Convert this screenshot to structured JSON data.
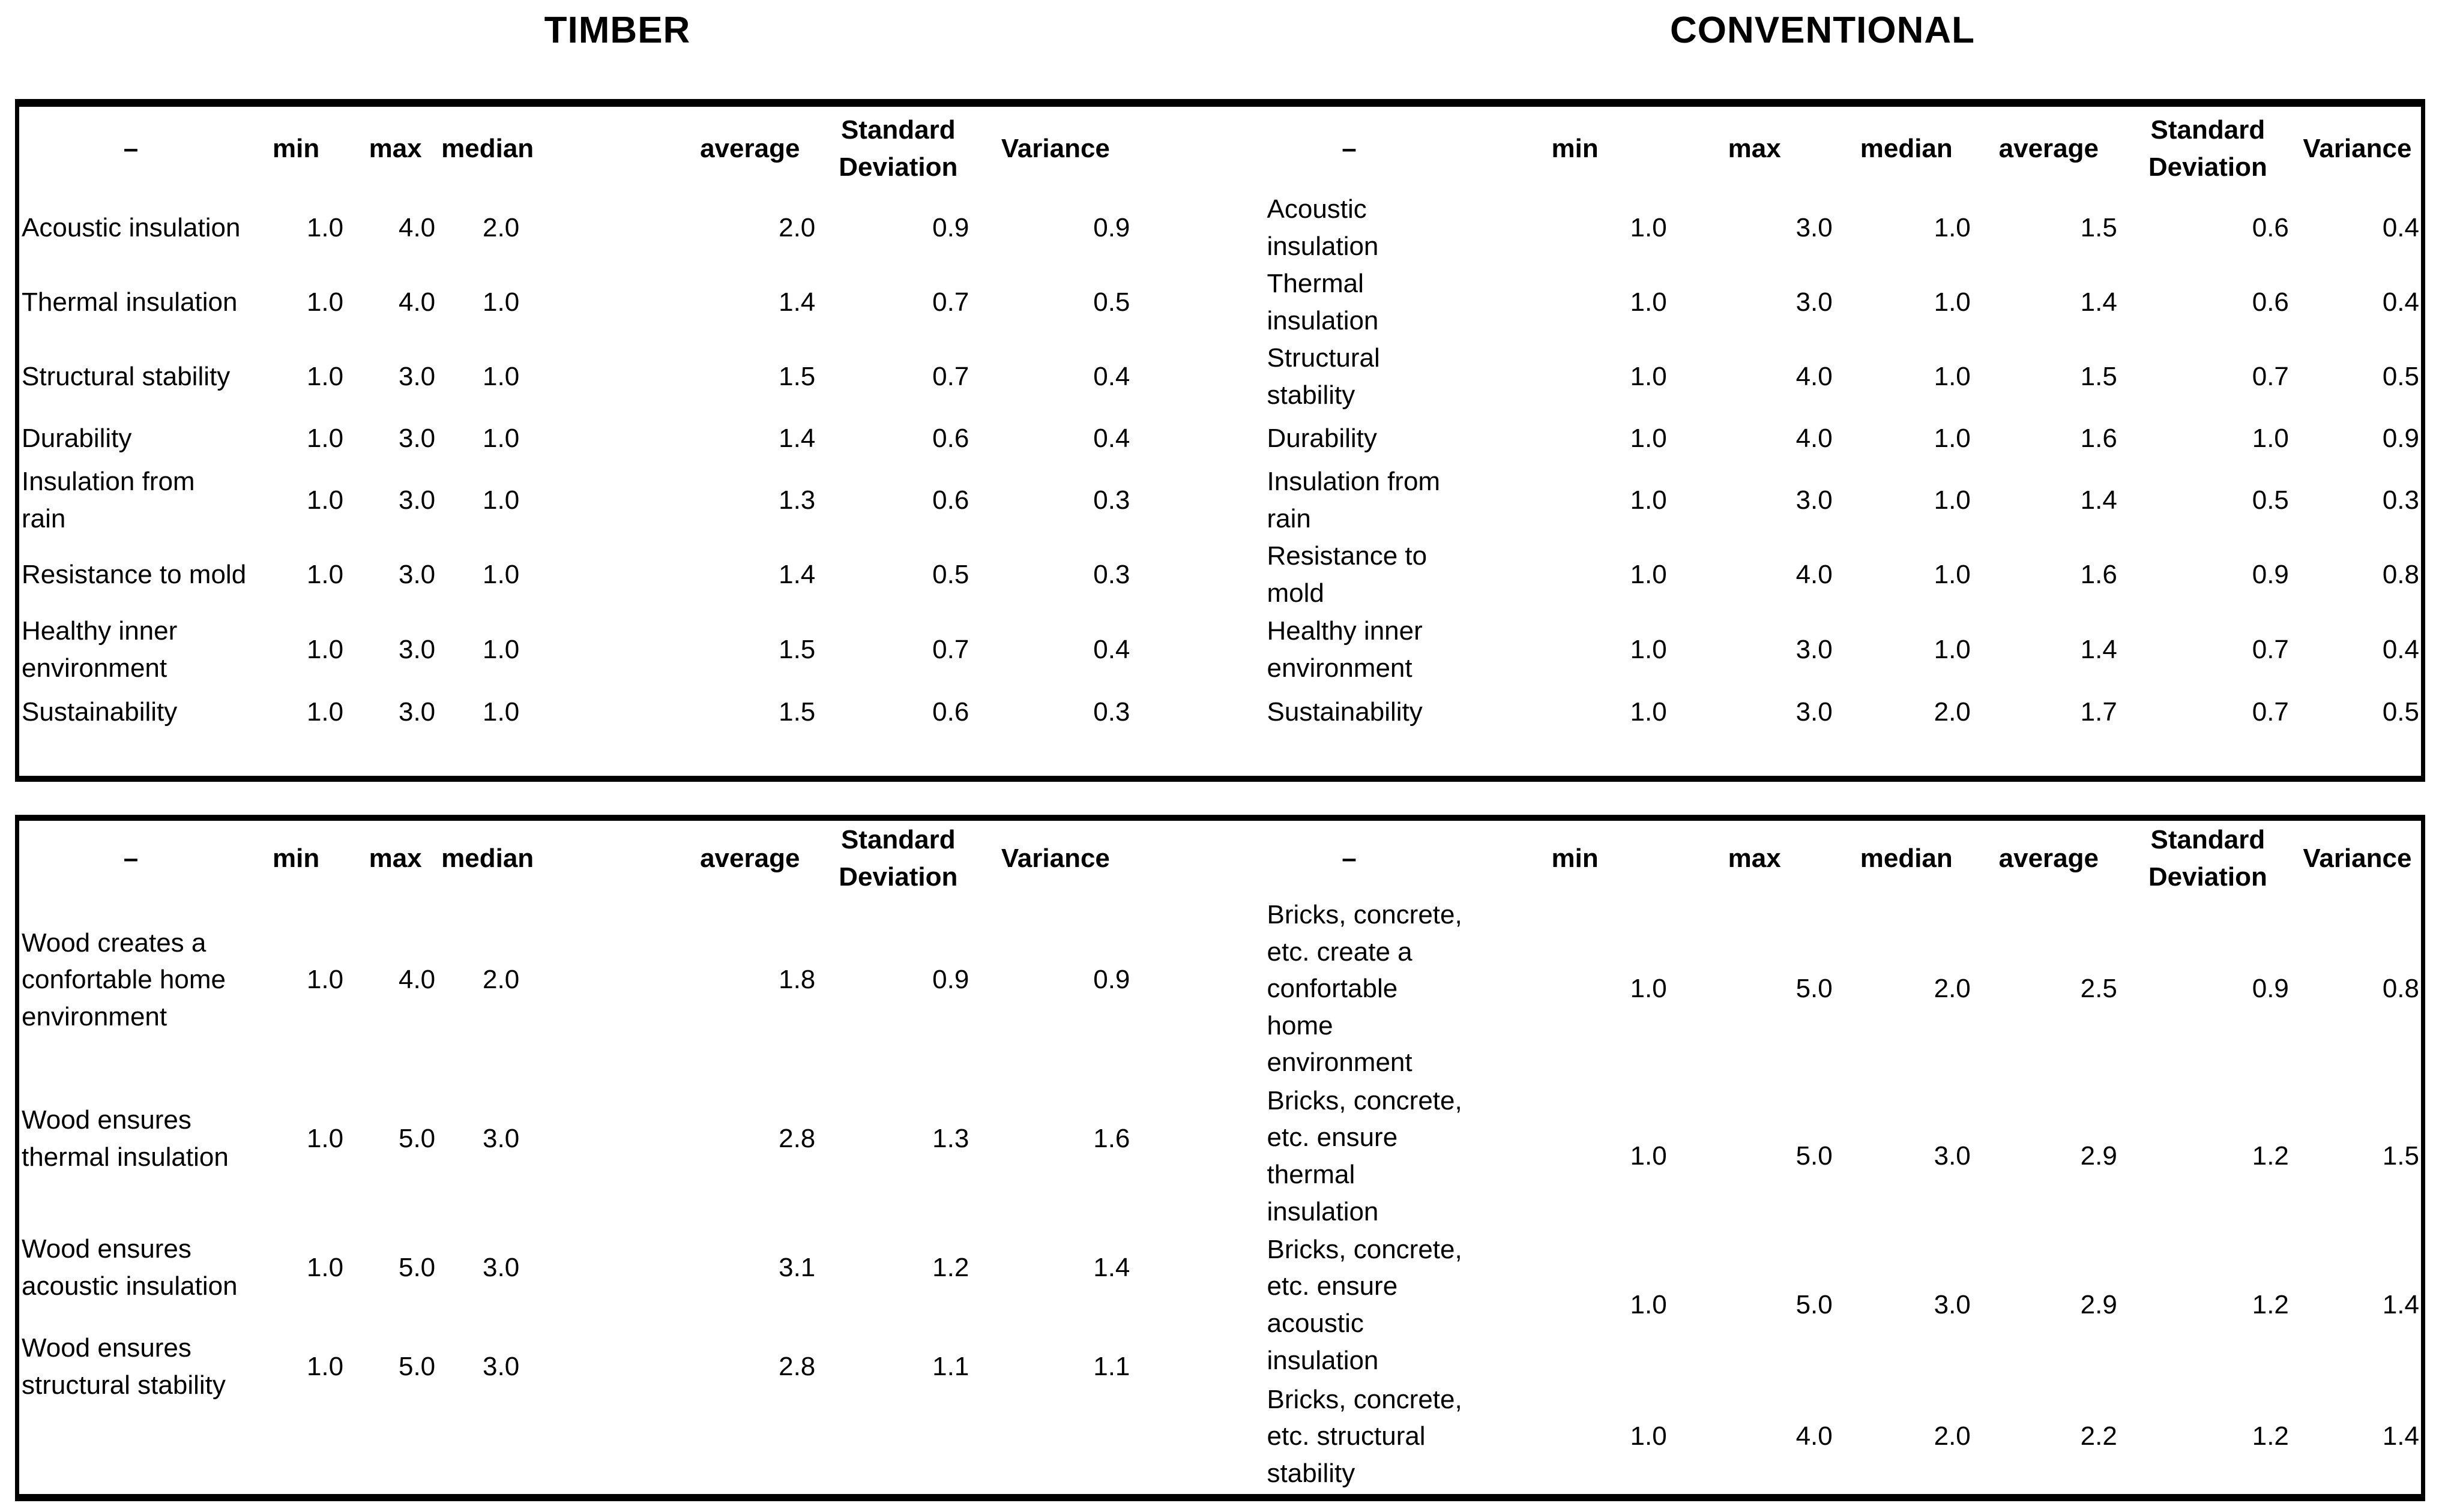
{
  "titles": {
    "left": "TIMBER",
    "right": "CONVENTIONAL"
  },
  "column_headers": {
    "label": "–",
    "min": "min",
    "max": "max",
    "median": "median",
    "average": "average",
    "stddev": "Standard\nDeviation",
    "variance": "Variance"
  },
  "attributes_table": {
    "timber": {
      "rows": [
        {
          "label": "Acoustic insulation",
          "min": "1.0",
          "max": "4.0",
          "median": "2.0",
          "average": "2.0",
          "stddev": "0.9",
          "variance": "0.9"
        },
        {
          "label": "Thermal insulation",
          "min": "1.0",
          "max": "4.0",
          "median": "1.0",
          "average": "1.4",
          "stddev": "0.7",
          "variance": "0.5"
        },
        {
          "label": "Structural stability",
          "min": "1.0",
          "max": "3.0",
          "median": "1.0",
          "average": "1.5",
          "stddev": "0.7",
          "variance": "0.4"
        },
        {
          "label": "Durability",
          "min": "1.0",
          "max": "3.0",
          "median": "1.0",
          "average": "1.4",
          "stddev": "0.6",
          "variance": "0.4"
        },
        {
          "label": "Insulation from\nrain",
          "min": "1.0",
          "max": "3.0",
          "median": "1.0",
          "average": "1.3",
          "stddev": "0.6",
          "variance": "0.3"
        },
        {
          "label": "Resistance to mold",
          "min": "1.0",
          "max": "3.0",
          "median": "1.0",
          "average": "1.4",
          "stddev": "0.5",
          "variance": "0.3"
        },
        {
          "label": "Healthy inner\nenvironment",
          "min": "1.0",
          "max": "3.0",
          "median": "1.0",
          "average": "1.5",
          "stddev": "0.7",
          "variance": "0.4"
        },
        {
          "label": "Sustainability",
          "min": "1.0",
          "max": "3.0",
          "median": "1.0",
          "average": "1.5",
          "stddev": "0.6",
          "variance": "0.3"
        }
      ]
    },
    "conventional": {
      "rows": [
        {
          "label": "Acoustic\ninsulation",
          "min": "1.0",
          "max": "3.0",
          "median": "1.0",
          "average": "1.5",
          "stddev": "0.6",
          "variance": "0.4"
        },
        {
          "label": "Thermal\ninsulation",
          "min": "1.0",
          "max": "3.0",
          "median": "1.0",
          "average": "1.4",
          "stddev": "0.6",
          "variance": "0.4"
        },
        {
          "label": "Structural\nstability",
          "min": "1.0",
          "max": "4.0",
          "median": "1.0",
          "average": "1.5",
          "stddev": "0.7",
          "variance": "0.5"
        },
        {
          "label": "Durability",
          "min": "1.0",
          "max": "4.0",
          "median": "1.0",
          "average": "1.6",
          "stddev": "1.0",
          "variance": "0.9"
        },
        {
          "label": "Insulation from\nrain",
          "min": "1.0",
          "max": "3.0",
          "median": "1.0",
          "average": "1.4",
          "stddev": "0.5",
          "variance": "0.3"
        },
        {
          "label": "Resistance to\nmold",
          "min": "1.0",
          "max": "4.0",
          "median": "1.0",
          "average": "1.6",
          "stddev": "0.9",
          "variance": "0.8"
        },
        {
          "label": "Healthy inner\nenvironment",
          "min": "1.0",
          "max": "3.0",
          "median": "1.0",
          "average": "1.4",
          "stddev": "0.7",
          "variance": "0.4"
        },
        {
          "label": "Sustainability",
          "min": "1.0",
          "max": "3.0",
          "median": "2.0",
          "average": "1.7",
          "stddev": "0.7",
          "variance": "0.5"
        }
      ]
    }
  },
  "statements_table": {
    "timber": {
      "rows": [
        {
          "label": "Wood creates a\nconfortable home\nenvironment",
          "min": "1.0",
          "max": "4.0",
          "median": "2.0",
          "average": "1.8",
          "stddev": "0.9",
          "variance": "0.9"
        },
        {
          "label": "Wood ensures\nthermal insulation",
          "min": "1.0",
          "max": "5.0",
          "median": "3.0",
          "average": "2.8",
          "stddev": "1.3",
          "variance": "1.6"
        },
        {
          "label": "Wood ensures\nacoustic insulation",
          "min": "1.0",
          "max": "5.0",
          "median": "3.0",
          "average": "3.1",
          "stddev": "1.2",
          "variance": "1.4"
        },
        {
          "label": "Wood ensures\nstructural stability",
          "min": "1.0",
          "max": "5.0",
          "median": "3.0",
          "average": "2.8",
          "stddev": "1.1",
          "variance": "1.1"
        }
      ]
    },
    "conventional": {
      "rows": [
        {
          "label": "Bricks, concrete,\netc. create a\nconfortable\nhome\nenvironment",
          "min": "1.0",
          "max": "5.0",
          "median": "2.0",
          "average": "2.5",
          "stddev": "0.9",
          "variance": "0.8"
        },
        {
          "label": "Bricks, concrete,\netc. ensure\nthermal\ninsulation",
          "min": "1.0",
          "max": "5.0",
          "median": "3.0",
          "average": "2.9",
          "stddev": "1.2",
          "variance": "1.5"
        },
        {
          "label": "Bricks, concrete,\netc. ensure\nacoustic\ninsulation",
          "min": "1.0",
          "max": "5.0",
          "median": "3.0",
          "average": "2.9",
          "stddev": "1.2",
          "variance": "1.4"
        },
        {
          "label": "Bricks, concrete,\netc. structural\nstability",
          "min": "1.0",
          "max": "4.0",
          "median": "2.0",
          "average": "2.2",
          "stddev": "1.2",
          "variance": "1.4"
        }
      ]
    }
  }
}
